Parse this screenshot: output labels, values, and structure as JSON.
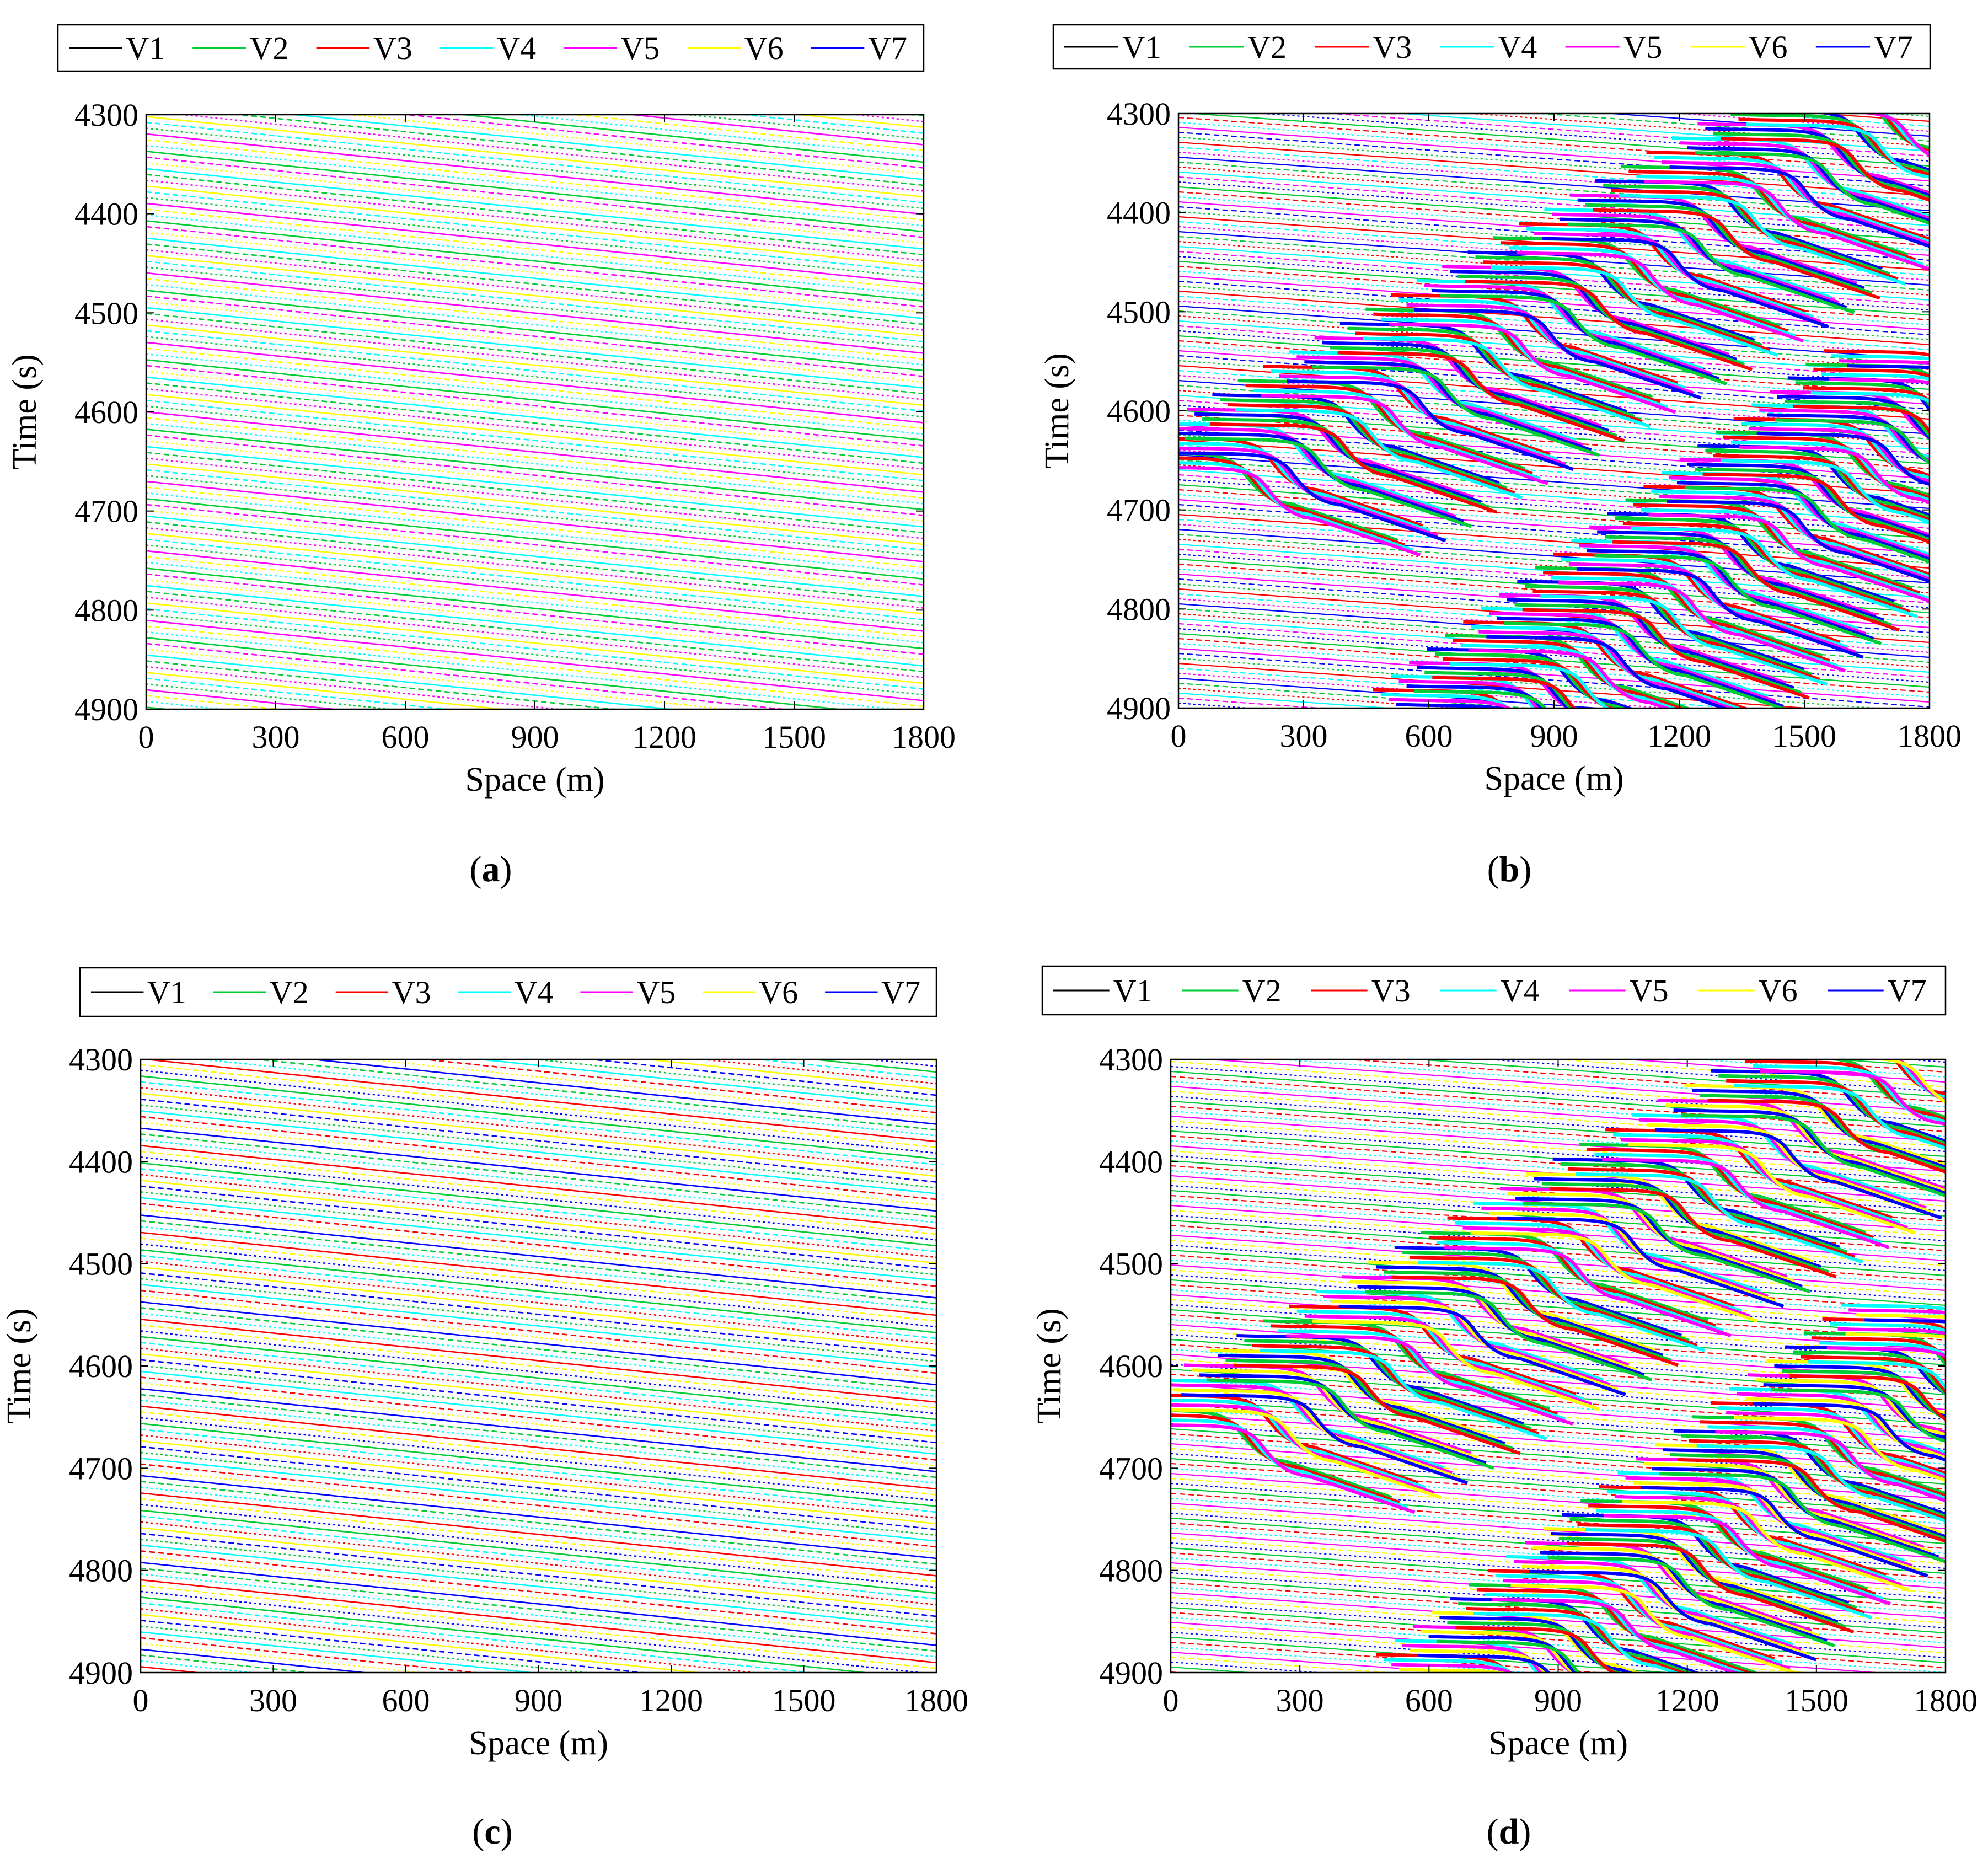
{
  "figure": {
    "legend_colors": {
      "V1": "#000000",
      "V2": "#00cc33",
      "V3": "#ff0000",
      "V4": "#00ffff",
      "V5": "#ff00ff",
      "V6": "#ffff00",
      "V7": "#0000ff"
    }
  },
  "chart_data": [
    {
      "id": "a",
      "caption": "(a)",
      "caption_letter": "a",
      "type": "line",
      "description_pattern": "free-flow",
      "dominant_series": [
        "V2",
        "V5",
        "V6",
        "V4"
      ],
      "legend": [
        "V1",
        "V2",
        "V3",
        "V4",
        "V5",
        "V6",
        "V7"
      ],
      "xlabel": "Space (m)",
      "ylabel": "Time (s)",
      "xlim": [
        0,
        1800
      ],
      "ylim": [
        4300,
        4900
      ],
      "y_reversed": true,
      "xticks": [
        "0",
        "300",
        "600",
        "900",
        "1200",
        "1500",
        "1800"
      ],
      "yticks": [
        "4300",
        "4400",
        "4500",
        "4600",
        "4700",
        "4800",
        "4900"
      ],
      "trajectory_slope_s_per_m": 0.045
    },
    {
      "id": "b",
      "caption": "(b)",
      "caption_letter": "b",
      "type": "line",
      "description_pattern": "stop-and-go waves",
      "dominant_series": [
        "V2",
        "V3",
        "V4",
        "V5",
        "V7"
      ],
      "legend": [
        "V1",
        "V2",
        "V3",
        "V4",
        "V5",
        "V6",
        "V7"
      ],
      "xlabel": "Space (m)",
      "ylabel": "Time (s)",
      "xlim": [
        0,
        1800
      ],
      "ylim": [
        4300,
        4900
      ],
      "y_reversed": true,
      "xticks": [
        "0",
        "300",
        "600",
        "900",
        "1200",
        "1500",
        "1800"
      ],
      "yticks": [
        "4300",
        "4400",
        "4500",
        "4600",
        "4700",
        "4800",
        "4900"
      ],
      "trajectory_slope_s_per_m": 0.03
    },
    {
      "id": "c",
      "caption": "(c)",
      "caption_letter": "c",
      "type": "line",
      "description_pattern": "free-flow",
      "dominant_series": [
        "V7",
        "V2",
        "V4",
        "V3",
        "V6"
      ],
      "legend": [
        "V1",
        "V2",
        "V3",
        "V4",
        "V5",
        "V6",
        "V7"
      ],
      "xlabel": "Space (m)",
      "ylabel": "Time (s)",
      "xlim": [
        0,
        1800
      ],
      "ylim": [
        4300,
        4900
      ],
      "y_reversed": true,
      "xticks": [
        "0",
        "300",
        "600",
        "900",
        "1200",
        "1500",
        "1800"
      ],
      "yticks": [
        "4300",
        "4400",
        "4500",
        "4600",
        "4700",
        "4800",
        "4900"
      ],
      "trajectory_slope_s_per_m": 0.045
    },
    {
      "id": "d",
      "caption": "(d)",
      "caption_letter": "d",
      "type": "line",
      "description_pattern": "stop-and-go waves",
      "dominant_series": [
        "V2",
        "V3",
        "V4",
        "V5",
        "V6",
        "V7"
      ],
      "legend": [
        "V1",
        "V2",
        "V3",
        "V4",
        "V5",
        "V6",
        "V7"
      ],
      "xlabel": "Space (m)",
      "ylabel": "Time (s)",
      "xlim": [
        0,
        1800
      ],
      "ylim": [
        4300,
        4900
      ],
      "y_reversed": true,
      "xticks": [
        "0",
        "300",
        "600",
        "900",
        "1200",
        "1500",
        "1800"
      ],
      "yticks": [
        "4300",
        "4400",
        "4500",
        "4600",
        "4700",
        "4800",
        "4900"
      ],
      "trajectory_slope_s_per_m": 0.03
    }
  ]
}
